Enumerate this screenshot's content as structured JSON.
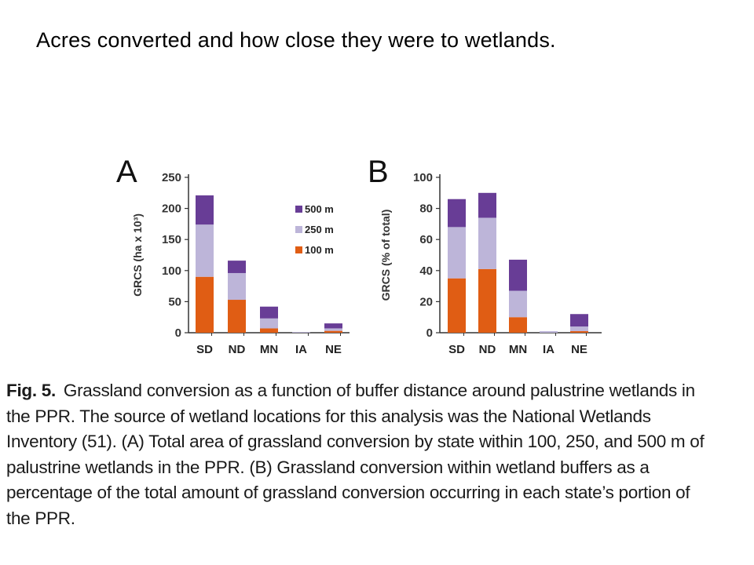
{
  "slide": {
    "title": "Acres converted and how close they were to wetlands."
  },
  "colors": {
    "100m": "#e05d14",
    "250m": "#bdb5d9",
    "500m": "#683d96",
    "axis": "#333333"
  },
  "chart_data": [
    {
      "type": "bar",
      "stacked": true,
      "panel_label": "A",
      "title": "",
      "ylabel": "GRCS (ha x 10³)",
      "xlabel": "",
      "ylim": [
        0,
        250
      ],
      "yticks": [
        0,
        50,
        100,
        150,
        200,
        250
      ],
      "categories": [
        "SD",
        "ND",
        "MN",
        "IA",
        "NE"
      ],
      "series": [
        {
          "name": "100 m",
          "values": [
            90,
            53,
            7,
            0,
            3
          ]
        },
        {
          "name": "250 m",
          "values": [
            84,
            43,
            16,
            1,
            4
          ]
        },
        {
          "name": "500 m",
          "values": [
            47,
            20,
            19,
            0,
            8
          ]
        }
      ],
      "legend": {
        "placement": "right",
        "entries": [
          "500 m",
          "250 m",
          "100 m"
        ]
      },
      "grid": false
    },
    {
      "type": "bar",
      "stacked": true,
      "panel_label": "B",
      "title": "",
      "ylabel": "GRCS (% of total)",
      "xlabel": "",
      "ylim": [
        0,
        100
      ],
      "yticks": [
        0,
        20,
        40,
        60,
        80,
        100
      ],
      "categories": [
        "SD",
        "ND",
        "MN",
        "IA",
        "NE"
      ],
      "series": [
        {
          "name": "100 m",
          "values": [
            35,
            41,
            10,
            0,
            1
          ]
        },
        {
          "name": "250 m",
          "values": [
            33,
            33,
            17,
            1,
            3
          ]
        },
        {
          "name": "500 m",
          "values": [
            18,
            16,
            20,
            0,
            8
          ]
        }
      ],
      "grid": false
    }
  ],
  "caption": {
    "label": "Fig. 5.",
    "text": "Grassland conversion as a function of buffer distance around palustrine wetlands in the PPR. The source of wetland locations for this analysis was the National Wetlands Inventory (51). (A) Total area of grassland conversion by state within 100, 250, and 500 m of palustrine wetlands in the PPR. (B) Grassland conversion within wetland buffers as a percentage of the total amount of grassland conversion occurring in each state’s portion of the PPR."
  }
}
